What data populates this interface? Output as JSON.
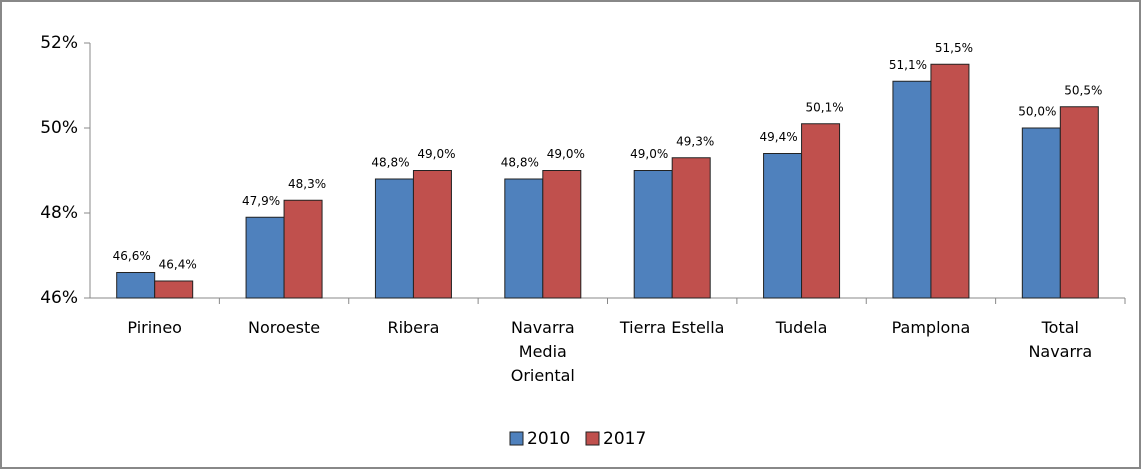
{
  "chart_data": {
    "type": "bar",
    "categories": [
      "Pirineo",
      "Noroeste",
      "Ribera",
      "Navarra\nMedia\nOriental",
      "Tierra Estella",
      "Tudela",
      "Pamplona",
      "Total\nNavarra"
    ],
    "series": [
      {
        "name": "2010",
        "color": "#4f81bd",
        "values": [
          46.6,
          47.9,
          48.8,
          48.8,
          49.0,
          49.4,
          51.1,
          50.0
        ],
        "value_labels": [
          "46,6%",
          "47,9%",
          "48,8%",
          "48,8%",
          "49,0%",
          "49,4%",
          "51,1%",
          "50,0%"
        ]
      },
      {
        "name": "2017",
        "color": "#c0504d",
        "values": [
          46.4,
          48.3,
          49.0,
          49.0,
          49.3,
          50.1,
          51.5,
          50.5
        ],
        "value_labels": [
          "46,4%",
          "48,3%",
          "49,0%",
          "49,0%",
          "49,3%",
          "50,1%",
          "51,5%",
          "50,5%"
        ]
      }
    ],
    "ylim": [
      46,
      52
    ],
    "yticks": [
      {
        "value": 46,
        "label": "46%"
      },
      {
        "value": 48,
        "label": "48%"
      },
      {
        "value": 50,
        "label": "50%"
      },
      {
        "value": 52,
        "label": "52%"
      }
    ],
    "grid": false,
    "legend": "bottom"
  }
}
